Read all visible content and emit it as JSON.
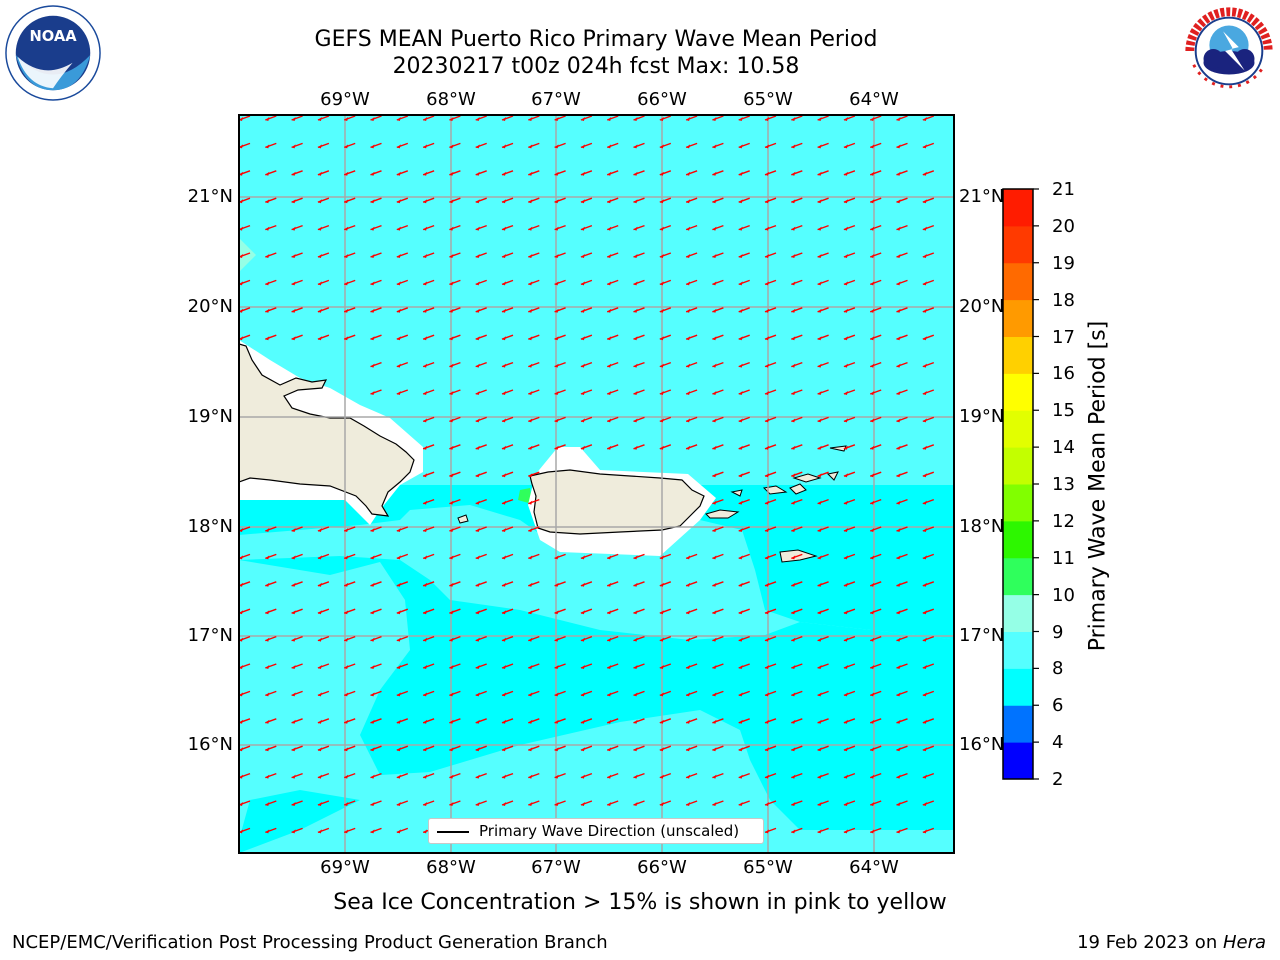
{
  "header": {
    "title_line1": "GEFS MEAN Puerto Rico Primary Wave Mean Period",
    "title_line2": "20230217 t00z 024h fcst   Max: 10.58"
  },
  "logos": {
    "left": {
      "icon": "noaa-logo",
      "text": "NOAA",
      "ring_text": "NATIONAL OCEANIC AND ATMOSPHERIC ADMINISTRATION · U.S. DEPARTMENT OF COMMERCE"
    },
    "right": {
      "icon": "nws-logo",
      "ring_text": "NATIONAL WEATHER SERVICE"
    }
  },
  "map": {
    "lon_labels": [
      "69°W",
      "68°W",
      "67°W",
      "66°W",
      "65°W",
      "64°W"
    ],
    "lat_labels": [
      "21°N",
      "20°N",
      "19°N",
      "18°N",
      "17°N",
      "16°N"
    ],
    "land_color": "#efecdc",
    "arrow_color": "#ff0000",
    "grid_color": "#a8a8a8",
    "legend_label": "Primary Wave Direction (unscaled)"
  },
  "colorbar": {
    "title": "Primary Wave Mean Period [s]",
    "ticks": [
      "2",
      "4",
      "6",
      "8",
      "9",
      "10",
      "11",
      "12",
      "13",
      "14",
      "15",
      "16",
      "17",
      "18",
      "19",
      "20",
      "21"
    ],
    "colors": [
      "#0000ff",
      "#0073ff",
      "#00ffff",
      "#55ffff",
      "#95ffe6",
      "#2fff5c",
      "#2df700",
      "#81ff00",
      "#c3ff00",
      "#e2ff00",
      "#ffff00",
      "#ffd000",
      "#ff9a00",
      "#ff6a00",
      "#ff3a00",
      "#ff1c00"
    ]
  },
  "note": "Sea Ice Concentration > 15% is shown in pink to yellow",
  "footer": {
    "left": "NCEP/EMC/Verification Post Processing Product Generation Branch",
    "right_prefix": "19 Feb 2023 on ",
    "right_host": "Hera"
  }
}
